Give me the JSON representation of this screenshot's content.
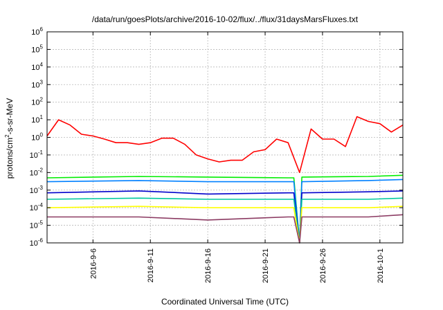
{
  "chart_data": {
    "type": "line",
    "title": "/data/run/goesPlots/archive/2016-10-02/flux/../flux/31daysMarsFluxes.txt",
    "xlabel": "Coordinated Universal Time (UTC)",
    "ylabel": {
      "prefix": "protons/cm",
      "sup": "2",
      "suffix": "-s-sr-MeV"
    },
    "yscale": "log",
    "ylim": [
      1e-06,
      1000000.0
    ],
    "y_ticks": [
      {
        "base": "10",
        "exp": "-6",
        "value": 1e-06
      },
      {
        "base": "10",
        "exp": "-5",
        "value": 1e-05
      },
      {
        "base": "10",
        "exp": "-4",
        "value": 0.0001
      },
      {
        "base": "10",
        "exp": "-3",
        "value": 0.001
      },
      {
        "base": "10",
        "exp": "-2",
        "value": 0.01
      },
      {
        "base": "10",
        "exp": "-1",
        "value": 0.1
      },
      {
        "base": "10",
        "exp": "0",
        "value": 1
      },
      {
        "base": "10",
        "exp": "1",
        "value": 10
      },
      {
        "base": "10",
        "exp": "2",
        "value": 100
      },
      {
        "base": "10",
        "exp": "3",
        "value": 1000
      },
      {
        "base": "10",
        "exp": "4",
        "value": 10000
      },
      {
        "base": "10",
        "exp": "5",
        "value": 100000
      },
      {
        "base": "10",
        "exp": "6",
        "value": 1000000
      }
    ],
    "xlim": [
      "2016-09-02",
      "2016-10-03"
    ],
    "x_ticks": [
      {
        "label": "2016-9-6",
        "date": "2016-09-06"
      },
      {
        "label": "2016-9-11",
        "date": "2016-09-11"
      },
      {
        "label": "2016-9-16",
        "date": "2016-09-16"
      },
      {
        "label": "2016-9-21",
        "date": "2016-09-21"
      },
      {
        "label": "2016-9-26",
        "date": "2016-09-26"
      },
      {
        "label": "2016-10-1",
        "date": "2016-10-01"
      }
    ],
    "grid": true,
    "series": [
      {
        "color": "#ff0000",
        "x": [
          "2016-09-02",
          "2016-09-03",
          "2016-09-04",
          "2016-09-05",
          "2016-09-06",
          "2016-09-07",
          "2016-09-08",
          "2016-09-09",
          "2016-09-10",
          "2016-09-11",
          "2016-09-12",
          "2016-09-13",
          "2016-09-14",
          "2016-09-15",
          "2016-09-16",
          "2016-09-17",
          "2016-09-18",
          "2016-09-19",
          "2016-09-20",
          "2016-09-21",
          "2016-09-22",
          "2016-09-23",
          "2016-09-24",
          "2016-09-25",
          "2016-09-26",
          "2016-09-27",
          "2016-09-28",
          "2016-09-29",
          "2016-09-30",
          "2016-10-01",
          "2016-10-02",
          "2016-10-03"
        ],
        "y": [
          1.2,
          10,
          5,
          1.5,
          1.2,
          0.8,
          0.5,
          0.5,
          0.4,
          0.5,
          0.9,
          0.9,
          0.4,
          0.1,
          0.06,
          0.04,
          0.05,
          0.05,
          0.15,
          0.2,
          0.8,
          0.5,
          0.01,
          3,
          0.8,
          0.8,
          0.3,
          15,
          8,
          6,
          2,
          5
        ]
      },
      {
        "color": "#00ee00",
        "x": [
          "2016-09-02",
          "2016-09-10",
          "2016-09-16",
          "2016-09-23",
          "2016-09-23.5",
          "2016-09-24",
          "2016-09-24.2",
          "2016-09-30",
          "2016-10-03"
        ],
        "y": [
          0.005,
          0.006,
          0.0055,
          0.005,
          0.005,
          1e-06,
          0.0055,
          0.006,
          0.007
        ]
      },
      {
        "color": "#0080ff",
        "x": [
          "2016-09-02",
          "2016-09-10",
          "2016-09-16",
          "2016-09-23",
          "2016-09-23.5",
          "2016-09-24",
          "2016-09-24.2",
          "2016-09-30",
          "2016-10-03"
        ],
        "y": [
          0.003,
          0.0035,
          0.003,
          0.003,
          0.003,
          1e-06,
          0.003,
          0.0035,
          0.004
        ]
      },
      {
        "color": "#0000cc",
        "x": [
          "2016-09-02",
          "2016-09-10",
          "2016-09-16",
          "2016-09-23",
          "2016-09-23.5",
          "2016-09-24",
          "2016-09-24.2",
          "2016-09-30",
          "2016-10-03"
        ],
        "y": [
          0.0007,
          0.0009,
          0.0006,
          0.0007,
          0.0007,
          1e-06,
          0.0007,
          0.0008,
          0.0009
        ]
      },
      {
        "color": "#00c8a0",
        "x": [
          "2016-09-02",
          "2016-09-10",
          "2016-09-16",
          "2016-09-23",
          "2016-09-23.5",
          "2016-09-24",
          "2016-09-24.2",
          "2016-09-30",
          "2016-10-03"
        ],
        "y": [
          0.0003,
          0.00035,
          0.0003,
          0.0003,
          0.0003,
          1e-06,
          0.0003,
          0.0003,
          0.00035
        ]
      },
      {
        "color": "#ffff00",
        "x": [
          "2016-09-02",
          "2016-09-10",
          "2016-09-16",
          "2016-09-23",
          "2016-09-23.5",
          "2016-09-24",
          "2016-09-24.2",
          "2016-09-30",
          "2016-10-03"
        ],
        "y": [
          0.0001,
          0.00012,
          0.0001,
          0.0001,
          0.0001,
          1e-06,
          0.0001,
          0.0001,
          0.00012
        ]
      },
      {
        "color": "#8b3a62",
        "x": [
          "2016-09-02",
          "2016-09-10",
          "2016-09-16",
          "2016-09-23",
          "2016-09-23.5",
          "2016-09-24",
          "2016-09-24.2",
          "2016-09-30",
          "2016-10-03"
        ],
        "y": [
          3e-05,
          3e-05,
          2e-05,
          3e-05,
          3e-05,
          1e-06,
          3e-05,
          3e-05,
          4e-05
        ]
      }
    ]
  }
}
